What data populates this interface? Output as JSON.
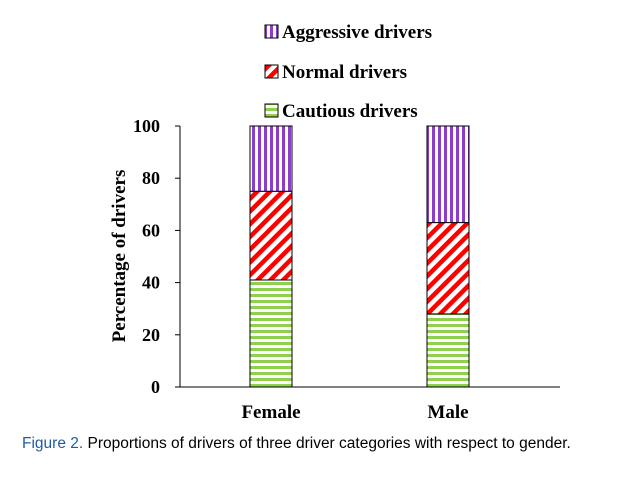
{
  "chart_data": {
    "type": "bar",
    "stacked": true,
    "categories": [
      "Female",
      "Male"
    ],
    "series": [
      {
        "name": "Cautious drivers",
        "values": [
          41,
          28
        ]
      },
      {
        "name": "Normal drivers",
        "values": [
          34,
          35
        ]
      },
      {
        "name": "Aggressive drivers",
        "values": [
          25,
          37
        ]
      }
    ],
    "ylabel": "Percentage of drivers",
    "xlabel": "",
    "ylim": [
      0,
      100
    ],
    "yticks": [
      "0",
      "20",
      "40",
      "60",
      "80",
      "100"
    ],
    "legend_position": "top",
    "grid": false,
    "colors": {
      "Cautious drivers": "#8fd14f",
      "Normal drivers": "#ff0000",
      "Aggressive drivers": "#8c3ec8"
    },
    "patterns": {
      "Cautious drivers": "horizontal-lines",
      "Normal drivers": "diagonal-lines",
      "Aggressive drivers": "vertical-lines"
    }
  },
  "caption": {
    "label": "Figure 2.",
    "text": " Proportions of drivers of three driver categories with respect to gender."
  }
}
